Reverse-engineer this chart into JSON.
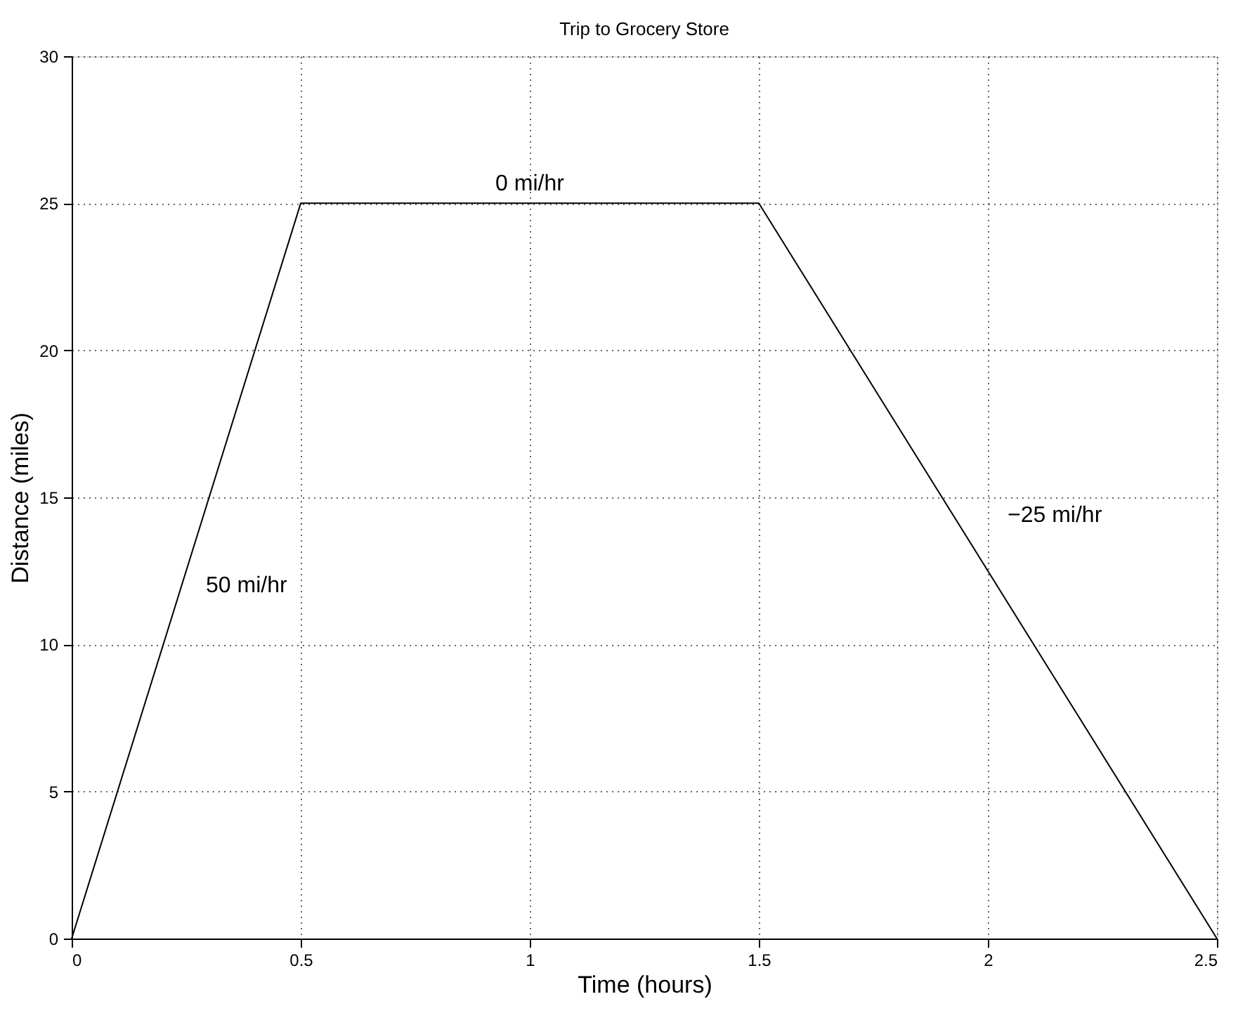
{
  "chart_data": {
    "type": "line",
    "title": "Trip to Grocery Store",
    "xlabel": "Time (hours)",
    "ylabel": "Distance (miles)",
    "x": [
      0,
      0.5,
      1.5,
      2.5
    ],
    "series": [
      {
        "color": "#000000",
        "values": [
          0,
          25,
          25,
          0
        ]
      }
    ],
    "xlim": [
      0,
      2.5
    ],
    "xticks": [
      0,
      0.5,
      1,
      1.5,
      2,
      2.5
    ],
    "ylim": [
      0,
      30
    ],
    "yticks": [
      0,
      5,
      10,
      15,
      20,
      25,
      30
    ],
    "grid": true,
    "marker": "none",
    "line_style": "solid",
    "annotations": [
      "50 mi/hr",
      "0 mi/hr",
      "−25 mi/hr"
    ]
  }
}
